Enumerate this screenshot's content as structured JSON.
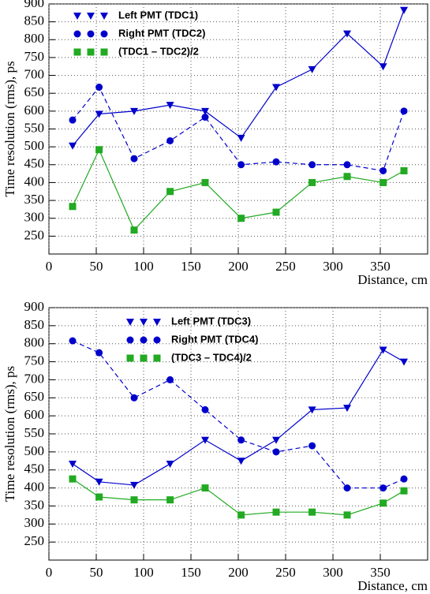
{
  "chart_data": [
    {
      "type": "line",
      "x": [
        25,
        53,
        90,
        128,
        165,
        203,
        240,
        278,
        315,
        353,
        375
      ],
      "series": [
        {
          "name": "Left  PMT  (TDC1)",
          "color": "#0000cc",
          "marker": "triangle-down",
          "dashed": false,
          "values": [
            503,
            592,
            600,
            617,
            600,
            525,
            667,
            717,
            817,
            725,
            883
          ]
        },
        {
          "name": "Right  PMT  (TDC2)",
          "color": "#0000cc",
          "marker": "circle",
          "dashed": true,
          "values": [
            575,
            667,
            467,
            517,
            583,
            450,
            458,
            450,
            450,
            433,
            600
          ]
        },
        {
          "name": "(TDC1 – TDC2)/2",
          "color": "#22aa22",
          "marker": "square",
          "dashed": false,
          "values": [
            333,
            492,
            267,
            375,
            400,
            300,
            317,
            400,
            417,
            400,
            433
          ]
        }
      ],
      "xlim": [
        0,
        400
      ],
      "ylim": [
        200,
        900
      ],
      "xticks": [
        0,
        50,
        100,
        150,
        200,
        250,
        300,
        350
      ],
      "yticks": [
        250,
        300,
        350,
        400,
        450,
        500,
        550,
        600,
        650,
        700,
        750,
        800,
        850,
        900
      ],
      "xlabel": "Distance,  cm",
      "ylabel": "Time  resolution  (rms),  ps",
      "grid": true
    },
    {
      "type": "line",
      "x": [
        25,
        53,
        90,
        128,
        165,
        203,
        240,
        278,
        315,
        353,
        375
      ],
      "series": [
        {
          "name": "Left  PMT  (TDC3)",
          "color": "#0000cc",
          "marker": "triangle-down",
          "dashed": false,
          "values": [
            467,
            417,
            408,
            467,
            533,
            475,
            533,
            617,
            622,
            783,
            750
          ]
        },
        {
          "name": "Right  PMT  (TDC4)",
          "color": "#0000cc",
          "marker": "circle",
          "dashed": true,
          "values": [
            808,
            775,
            650,
            700,
            617,
            533,
            500,
            517,
            400,
            400,
            425
          ]
        },
        {
          "name": "(TDC3 – TDC4)/2",
          "color": "#22aa22",
          "marker": "square",
          "dashed": false,
          "values": [
            425,
            375,
            367,
            367,
            400,
            325,
            333,
            333,
            325,
            358,
            392
          ]
        }
      ],
      "xlim": [
        0,
        400
      ],
      "ylim": [
        200,
        900
      ],
      "xticks": [
        0,
        50,
        100,
        150,
        200,
        250,
        300,
        350
      ],
      "yticks": [
        250,
        300,
        350,
        400,
        450,
        500,
        550,
        600,
        650,
        700,
        750,
        800,
        850,
        900
      ],
      "xlabel": "Distance,  cm",
      "ylabel": "Time  resolution  (rms),  ps",
      "grid": true
    }
  ]
}
